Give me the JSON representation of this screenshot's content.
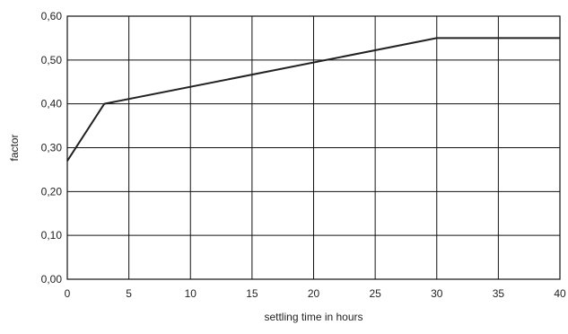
{
  "chart_data": {
    "type": "line",
    "title": "",
    "xlabel": "settling time in hours",
    "ylabel": "factor",
    "xlim": [
      0,
      40
    ],
    "ylim": [
      0,
      0.6
    ],
    "grid": true,
    "legend": "none",
    "x_ticks": [
      "0",
      "5",
      "10",
      "15",
      "20",
      "25",
      "30",
      "35",
      "40"
    ],
    "y_ticks": [
      "0,00",
      "0,10",
      "0,20",
      "0,30",
      "0,40",
      "0,50",
      "0,60"
    ],
    "series": [
      {
        "x": [
          0,
          3,
          30,
          40
        ],
        "y": [
          0.27,
          0.4,
          0.55,
          0.55
        ]
      }
    ],
    "colors": {
      "line": "#222222",
      "grid": "#111111",
      "background": "#ffffff"
    }
  }
}
